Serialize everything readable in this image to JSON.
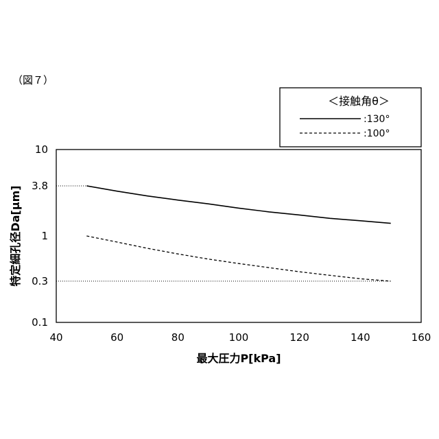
{
  "figure_label": "（図７）",
  "chart_data": {
    "type": "line",
    "xlabel": "最大圧力P[kPa]",
    "ylabel": "特定細孔径Da[μm]",
    "xlim": [
      40,
      160
    ],
    "ylim": [
      0.1,
      10
    ],
    "yscale": "log",
    "grid": false,
    "x_ticks": [
      "40",
      "60",
      "80",
      "100",
      "120",
      "140",
      "160"
    ],
    "y_ticks": [
      "0.1",
      "0.3",
      "1",
      "3.8",
      "10"
    ],
    "legend": {
      "title": "＜接触角θ＞",
      "placement": "top-right"
    },
    "series": [
      {
        "name": ":130°",
        "style": "solid",
        "color": "#000000",
        "x": [
          50,
          60,
          70,
          80,
          90,
          100,
          110,
          120,
          130,
          140,
          150
        ],
        "y": [
          3.8,
          3.3,
          2.9,
          2.6,
          2.35,
          2.1,
          1.9,
          1.75,
          1.6,
          1.5,
          1.4
        ]
      },
      {
        "name": ":100°",
        "style": "dashed",
        "color": "#000000",
        "x": [
          50,
          60,
          70,
          80,
          90,
          100,
          110,
          120,
          130,
          140,
          150
        ],
        "y": [
          1.0,
          0.85,
          0.72,
          0.62,
          0.54,
          0.48,
          0.43,
          0.385,
          0.35,
          0.32,
          0.3
        ]
      }
    ],
    "reference_lines": [
      {
        "y": 3.8,
        "x_end": 50,
        "style": "dotted"
      },
      {
        "y": 0.3,
        "x_end": 150,
        "style": "dotted"
      }
    ]
  }
}
